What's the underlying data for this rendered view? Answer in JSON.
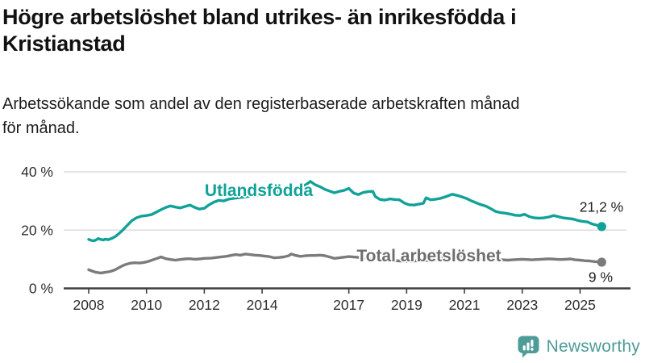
{
  "header": {
    "title_lines": [
      "Högre arbetslöshet bland utrikes- än inrikesfödda i",
      "Kristianstad"
    ],
    "subtitle_lines": [
      "Arbetssökande som andel av den registerbaserade arbetskraften månad",
      "för månad."
    ]
  },
  "chart_data": {
    "type": "line",
    "title": "Högre arbetslöshet bland utrikes- än inrikesfödda i Kristianstad",
    "subtitle": "Arbetssökande som andel av den registerbaserade arbetskraften månad för månad.",
    "grid": "horizontal",
    "legend_position": "inline-labels-on-lines",
    "x_axis": {
      "unit": "year-month",
      "min": 2008,
      "max": 2025.75,
      "ticks": [
        2008,
        2010,
        2012,
        2014,
        2017,
        2019,
        2021,
        2023,
        2025
      ]
    },
    "y_axis": {
      "unit": "%",
      "range": [
        0,
        44
      ],
      "ticks": [
        0,
        20,
        40
      ],
      "labels": [
        "0 %",
        "20 %",
        "40 %"
      ]
    },
    "series": [
      {
        "name": "Utlandsfödda",
        "color": "#10A298",
        "end_label": "21,2 %",
        "last_value": 21.2,
        "points": [
          [
            2008,
            16.8
          ],
          [
            2008.08,
            16.5
          ],
          [
            2008.17,
            16.3
          ],
          [
            2008.25,
            16.6
          ],
          [
            2008.33,
            17.1
          ],
          [
            2008.42,
            16.8
          ],
          [
            2008.5,
            16.6
          ],
          [
            2008.58,
            16.9
          ],
          [
            2008.67,
            16.7
          ],
          [
            2008.75,
            17
          ],
          [
            2008.83,
            17.3
          ],
          [
            2008.92,
            17.8
          ],
          [
            2009,
            18.4
          ],
          [
            2009.17,
            19.9
          ],
          [
            2009.33,
            21.6
          ],
          [
            2009.5,
            23.3
          ],
          [
            2009.67,
            24.3
          ],
          [
            2009.83,
            24.8
          ],
          [
            2010,
            25
          ],
          [
            2010.17,
            25.3
          ],
          [
            2010.33,
            26.1
          ],
          [
            2010.5,
            27
          ],
          [
            2010.67,
            27.8
          ],
          [
            2010.83,
            28.3
          ],
          [
            2011,
            27.9
          ],
          [
            2011.17,
            27.6
          ],
          [
            2011.33,
            28.1
          ],
          [
            2011.5,
            28.6
          ],
          [
            2011.67,
            27.8
          ],
          [
            2011.83,
            27.2
          ],
          [
            2012,
            27.5
          ],
          [
            2012.17,
            28.7
          ],
          [
            2012.33,
            29.6
          ],
          [
            2012.5,
            30.2
          ],
          [
            2012.67,
            30
          ],
          [
            2012.83,
            30.6
          ],
          [
            2013,
            30.9
          ],
          [
            2013.25,
            31.2
          ],
          [
            2013.5,
            31.5
          ],
          [
            2013.75,
            31.9
          ],
          [
            2014,
            32.3
          ],
          [
            2014.25,
            32.8
          ],
          [
            2014.5,
            33.2
          ],
          [
            2014.75,
            33.7
          ],
          [
            2015,
            34.1
          ],
          [
            2015.25,
            34.7
          ],
          [
            2015.5,
            35.5
          ],
          [
            2015.67,
            36.7
          ],
          [
            2015.83,
            35.6
          ],
          [
            2016,
            34.9
          ],
          [
            2016.17,
            34
          ],
          [
            2016.33,
            33.4
          ],
          [
            2016.5,
            32.8
          ],
          [
            2016.67,
            33.3
          ],
          [
            2016.83,
            33.6
          ],
          [
            2017,
            34.3
          ],
          [
            2017.17,
            32.7
          ],
          [
            2017.33,
            32.2
          ],
          [
            2017.5,
            32.9
          ],
          [
            2017.67,
            33.2
          ],
          [
            2017.83,
            33.3
          ],
          [
            2017.92,
            31.5
          ],
          [
            2018.08,
            30.5
          ],
          [
            2018.25,
            30.3
          ],
          [
            2018.42,
            30.7
          ],
          [
            2018.58,
            30.5
          ],
          [
            2018.75,
            30.4
          ],
          [
            2018.92,
            29.3
          ],
          [
            2019.08,
            28.7
          ],
          [
            2019.25,
            28.6
          ],
          [
            2019.42,
            28.9
          ],
          [
            2019.58,
            29.2
          ],
          [
            2019.67,
            31.1
          ],
          [
            2019.83,
            30.4
          ],
          [
            2020,
            30.6
          ],
          [
            2020.17,
            30.9
          ],
          [
            2020.33,
            31.4
          ],
          [
            2020.5,
            32
          ],
          [
            2020.58,
            32.3
          ],
          [
            2020.75,
            31.9
          ],
          [
            2020.92,
            31.4
          ],
          [
            2021.08,
            30.8
          ],
          [
            2021.25,
            30
          ],
          [
            2021.42,
            29.3
          ],
          [
            2021.58,
            28.7
          ],
          [
            2021.75,
            28.2
          ],
          [
            2021.92,
            27.3
          ],
          [
            2022.08,
            26.4
          ],
          [
            2022.25,
            26
          ],
          [
            2022.42,
            25.8
          ],
          [
            2022.58,
            25.5
          ],
          [
            2022.75,
            25.1
          ],
          [
            2022.92,
            25
          ],
          [
            2023.08,
            25.4
          ],
          [
            2023.25,
            24.6
          ],
          [
            2023.42,
            24.2
          ],
          [
            2023.58,
            24.1
          ],
          [
            2023.75,
            24.2
          ],
          [
            2023.92,
            24.5
          ],
          [
            2024.08,
            25
          ],
          [
            2024.25,
            24.6
          ],
          [
            2024.42,
            24.2
          ],
          [
            2024.58,
            24
          ],
          [
            2024.75,
            23.8
          ],
          [
            2024.92,
            23.3
          ],
          [
            2025.08,
            23
          ],
          [
            2025.25,
            22.8
          ],
          [
            2025.42,
            22.1
          ],
          [
            2025.58,
            21.7
          ],
          [
            2025.75,
            21.2
          ]
        ]
      },
      {
        "name": "Total arbetslöshet",
        "color": "#7B7B7B",
        "end_label": "9 %",
        "last_value": 9,
        "points": [
          [
            2008,
            6.4
          ],
          [
            2008.08,
            6.1
          ],
          [
            2008.25,
            5.5
          ],
          [
            2008.42,
            5.3
          ],
          [
            2008.58,
            5.5
          ],
          [
            2008.75,
            5.8
          ],
          [
            2008.92,
            6.4
          ],
          [
            2009.08,
            7.3
          ],
          [
            2009.25,
            8.1
          ],
          [
            2009.42,
            8.6
          ],
          [
            2009.58,
            8.8
          ],
          [
            2009.75,
            8.7
          ],
          [
            2009.92,
            8.9
          ],
          [
            2010.08,
            9.3
          ],
          [
            2010.25,
            9.9
          ],
          [
            2010.42,
            10.5
          ],
          [
            2010.5,
            10.8
          ],
          [
            2010.67,
            10.2
          ],
          [
            2010.83,
            9.9
          ],
          [
            2011,
            9.7
          ],
          [
            2011.17,
            9.9
          ],
          [
            2011.33,
            10.1
          ],
          [
            2011.5,
            10.2
          ],
          [
            2011.67,
            10
          ],
          [
            2011.83,
            10.1
          ],
          [
            2012,
            10.3
          ],
          [
            2012.25,
            10.4
          ],
          [
            2012.5,
            10.7
          ],
          [
            2012.75,
            11
          ],
          [
            2012.92,
            11.3
          ],
          [
            2013.08,
            11.6
          ],
          [
            2013.25,
            11.4
          ],
          [
            2013.42,
            11.8
          ],
          [
            2013.58,
            11.6
          ],
          [
            2013.75,
            11.4
          ],
          [
            2013.92,
            11.3
          ],
          [
            2014.08,
            11.1
          ],
          [
            2014.25,
            10.9
          ],
          [
            2014.42,
            10.5
          ],
          [
            2014.58,
            10.6
          ],
          [
            2014.75,
            10.8
          ],
          [
            2014.92,
            11.2
          ],
          [
            2015,
            11.8
          ],
          [
            2015.17,
            11.3
          ],
          [
            2015.33,
            11
          ],
          [
            2015.5,
            11.2
          ],
          [
            2015.67,
            11.3
          ],
          [
            2015.83,
            11.3
          ],
          [
            2016,
            11.4
          ],
          [
            2016.17,
            11.2
          ],
          [
            2016.33,
            10.8
          ],
          [
            2016.5,
            10.3
          ],
          [
            2016.67,
            10.5
          ],
          [
            2016.83,
            10.7
          ],
          [
            2017,
            10.9
          ],
          [
            2017.25,
            10.7
          ],
          [
            2017.5,
            10.5
          ],
          [
            2017.75,
            10.2
          ],
          [
            2018,
            10
          ],
          [
            2018.25,
            9.8
          ],
          [
            2018.5,
            9.6
          ],
          [
            2018.75,
            9.4
          ],
          [
            2019,
            9.3
          ],
          [
            2019.25,
            9.4
          ],
          [
            2019.5,
            9.5
          ],
          [
            2019.75,
            9.6
          ],
          [
            2020,
            9.8
          ],
          [
            2020.25,
            10.6
          ],
          [
            2020.5,
            11.1
          ],
          [
            2020.75,
            11.2
          ],
          [
            2021,
            11
          ],
          [
            2021.25,
            10.6
          ],
          [
            2021.5,
            10.2
          ],
          [
            2021.75,
            10
          ],
          [
            2022,
            9.9
          ],
          [
            2022.17,
            9.9
          ],
          [
            2022.33,
            9.8
          ],
          [
            2022.5,
            9.7
          ],
          [
            2022.67,
            9.8
          ],
          [
            2022.83,
            9.9
          ],
          [
            2023,
            10
          ],
          [
            2023.17,
            9.9
          ],
          [
            2023.33,
            9.8
          ],
          [
            2023.5,
            9.9
          ],
          [
            2023.67,
            10
          ],
          [
            2023.83,
            10.1
          ],
          [
            2024,
            10.1
          ],
          [
            2024.17,
            10
          ],
          [
            2024.33,
            9.9
          ],
          [
            2024.5,
            10
          ],
          [
            2024.67,
            10.1
          ],
          [
            2024.83,
            9.8
          ],
          [
            2025,
            9.7
          ],
          [
            2025.17,
            9.5
          ],
          [
            2025.33,
            9.4
          ],
          [
            2025.5,
            9.2
          ],
          [
            2025.75,
            9
          ]
        ]
      }
    ],
    "colors": {
      "axis": "#3f3f3f",
      "gridline": "#dbdbdb",
      "tick_text": "#2e2e2e",
      "end_label_text": "#1f1f1f"
    }
  },
  "footer": {
    "brand": "Newsworthy",
    "brand_color": "#4E9C98",
    "logo_icon": "bar-chart-speech-bubble-icon"
  }
}
